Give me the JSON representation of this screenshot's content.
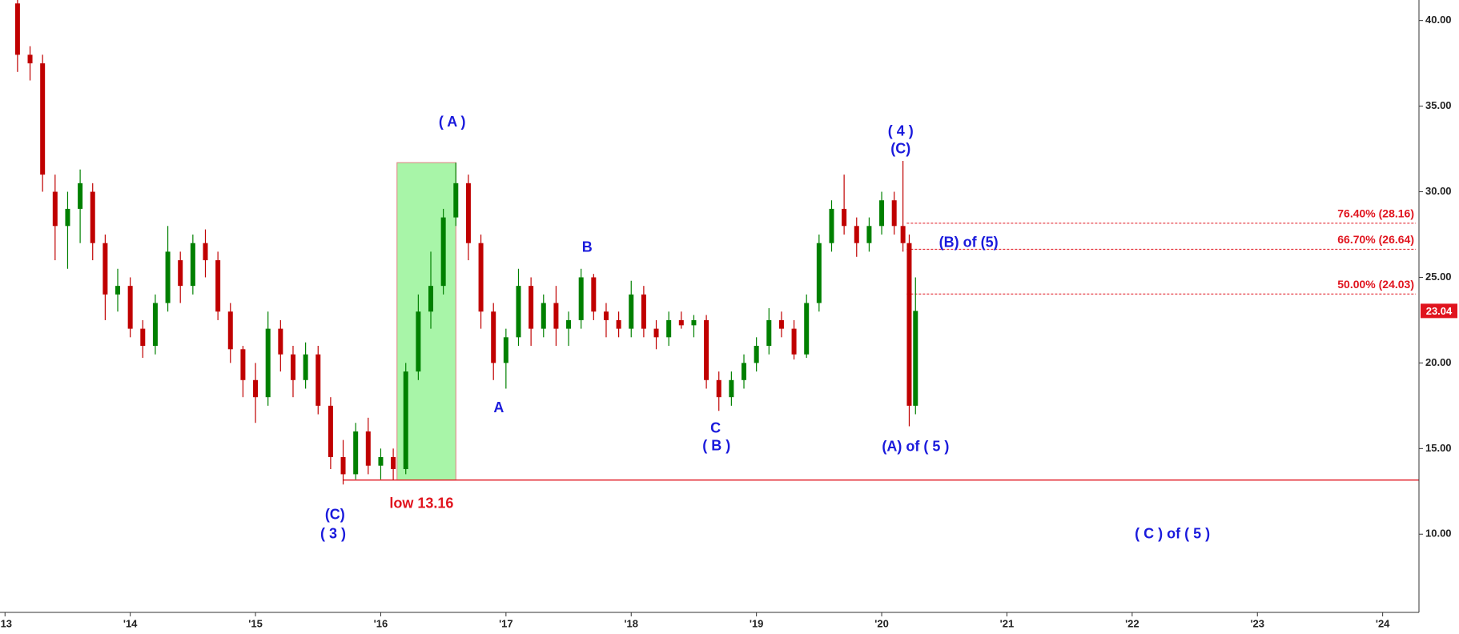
{
  "chart_data": {
    "type": "candlestick",
    "xlim": [
      2012.96,
      2024.29
    ],
    "ylim": [
      5.43,
      41.2
    ],
    "xticks": [
      {
        "value": 2013,
        "label": "'13"
      },
      {
        "value": 2014,
        "label": "'14"
      },
      {
        "value": 2015,
        "label": "'15"
      },
      {
        "value": 2016,
        "label": "'16"
      },
      {
        "value": 2017,
        "label": "'17"
      },
      {
        "value": 2018,
        "label": "'18"
      },
      {
        "value": 2019,
        "label": "'19"
      },
      {
        "value": 2020,
        "label": "'20"
      },
      {
        "value": 2021,
        "label": "'21"
      },
      {
        "value": 2022,
        "label": "'22"
      },
      {
        "value": 2023,
        "label": "'23"
      },
      {
        "value": 2024,
        "label": "'24"
      }
    ],
    "yticks": [
      {
        "value": 10,
        "label": "10.00"
      },
      {
        "value": 15,
        "label": "15.00"
      },
      {
        "value": 20,
        "label": "20.00"
      },
      {
        "value": 25,
        "label": "25.00"
      },
      {
        "value": 30,
        "label": "30.00"
      },
      {
        "value": 35,
        "label": "35.00"
      },
      {
        "value": 40,
        "label": "40.00"
      }
    ],
    "up_color": "#008000",
    "down_color": "#c00000",
    "x": [
      2013.1,
      2013.2,
      2013.3,
      2013.4,
      2013.5,
      2013.6,
      2013.7,
      2013.8,
      2013.9,
      2014.0,
      2014.1,
      2014.2,
      2014.3,
      2014.4,
      2014.5,
      2014.6,
      2014.7,
      2014.8,
      2014.9,
      2015.0,
      2015.1,
      2015.2,
      2015.3,
      2015.4,
      2015.5,
      2015.6,
      2015.7,
      2015.8,
      2015.9,
      2016.0,
      2016.1,
      2016.2,
      2016.3,
      2016.4,
      2016.5,
      2016.6,
      2016.7,
      2016.8,
      2016.9,
      2017.0,
      2017.1,
      2017.2,
      2017.3,
      2017.4,
      2017.5,
      2017.6,
      2017.7,
      2017.8,
      2017.9,
      2018.0,
      2018.1,
      2018.2,
      2018.3,
      2018.4,
      2018.5,
      2018.6,
      2018.7,
      2018.8,
      2018.9,
      2019.0,
      2019.1,
      2019.2,
      2019.3,
      2019.4,
      2019.5,
      2019.6,
      2019.7,
      2019.8,
      2019.9,
      2020.0,
      2020.1,
      2020.17,
      2020.22,
      2020.27
    ],
    "open": [
      41,
      38,
      37.5,
      30,
      28,
      29,
      30,
      27,
      24,
      24.5,
      22,
      21,
      23.5,
      26,
      24.5,
      27,
      26,
      23,
      20.8,
      19,
      18,
      22,
      20.5,
      19,
      20.5,
      17.5,
      14.5,
      13.5,
      16,
      14,
      14.5,
      13.8,
      19.5,
      23,
      24.5,
      28.5,
      30.5,
      27,
      23,
      20,
      21.5,
      24.5,
      22,
      23.5,
      22,
      22.5,
      25,
      23,
      22.5,
      22,
      24,
      22,
      21.5,
      22.5,
      22.2,
      22.5,
      19,
      18,
      19,
      20,
      21,
      22.5,
      22,
      20.5,
      23.5,
      27,
      29,
      28,
      27,
      28,
      29.5,
      28,
      27,
      17.5
    ],
    "high": [
      41.5,
      38.5,
      38,
      31,
      30,
      31.3,
      30.5,
      27.5,
      25.5,
      25,
      22.5,
      24,
      28,
      26.5,
      27.5,
      27.8,
      26.5,
      23.5,
      21,
      20,
      23,
      22.5,
      21,
      21.2,
      21,
      18,
      15.5,
      16.5,
      16.8,
      15,
      15,
      20,
      24,
      26.5,
      29,
      31.7,
      31,
      27.5,
      23.5,
      22,
      25.5,
      25,
      24,
      24.5,
      23,
      25.5,
      25.2,
      23.5,
      23,
      24.8,
      24.5,
      22.5,
      23,
      23,
      22.8,
      22.8,
      19.5,
      19.5,
      20.5,
      21.5,
      23.2,
      23,
      22.5,
      24,
      27.5,
      29.5,
      31,
      28.5,
      28.5,
      30,
      30,
      31.8,
      27.5,
      25
    ],
    "low": [
      37,
      36.5,
      30,
      26,
      25.5,
      27,
      26,
      22.5,
      23,
      21.5,
      20.3,
      20.5,
      23,
      23.5,
      24,
      25,
      22.5,
      20,
      18,
      16.5,
      17.5,
      19.5,
      18,
      18.5,
      17,
      13.8,
      12.9,
      13.2,
      13.5,
      13.2,
      13.16,
      13.5,
      19,
      22,
      24,
      28,
      26,
      22,
      19,
      18.5,
      21,
      21,
      21.5,
      21,
      21,
      22,
      22.5,
      21.5,
      21.5,
      21.5,
      21.5,
      20.8,
      21,
      22,
      21.5,
      18.5,
      17.2,
      17.5,
      18.5,
      19.5,
      20.5,
      21.5,
      20.2,
      20.3,
      23,
      26.5,
      27.5,
      26.2,
      26.5,
      27.5,
      27.5,
      26.5,
      16.3,
      17
    ],
    "close": [
      38,
      37.5,
      31,
      28,
      29,
      30.5,
      27,
      24,
      24.5,
      22,
      21,
      23.5,
      26.5,
      24.5,
      27,
      26,
      23,
      20.8,
      19,
      18,
      22,
      20.5,
      19,
      20.5,
      17.5,
      14.5,
      13.5,
      16,
      14,
      14.5,
      13.8,
      19.5,
      23,
      24.5,
      28.5,
      30.5,
      27,
      23,
      20,
      21.5,
      24.5,
      22,
      23.5,
      22,
      22.5,
      25,
      23,
      22.5,
      22,
      24,
      22,
      21.5,
      22.5,
      22.2,
      22.5,
      19,
      18,
      19,
      20,
      21,
      22.5,
      22,
      20.5,
      23.5,
      27,
      29,
      28,
      27,
      28,
      29.5,
      28,
      27,
      17.5,
      23.04
    ],
    "last_price": 23.04,
    "highlight": {
      "x": [
        2016.13,
        2016.6
      ],
      "y": [
        13.16,
        31.7
      ]
    },
    "support": {
      "value": 13.16,
      "from": 2015.7
    },
    "levels": [
      {
        "label": "76.40% (28.16)",
        "value": 28.16
      },
      {
        "label": "66.70% (26.64)",
        "value": 26.64
      },
      {
        "label": "50.00% (24.03)",
        "value": 24.03
      }
    ],
    "levels_from": 2020.2,
    "annotations": [
      "( A )",
      "B",
      "A",
      "C",
      "( B )",
      "(C)",
      "( 3 )",
      "low 13.16",
      "( 4 )",
      "(C)",
      "(B) of (5)",
      "(A) of ( 5 )",
      "( C ) of ( 5 )"
    ]
  }
}
